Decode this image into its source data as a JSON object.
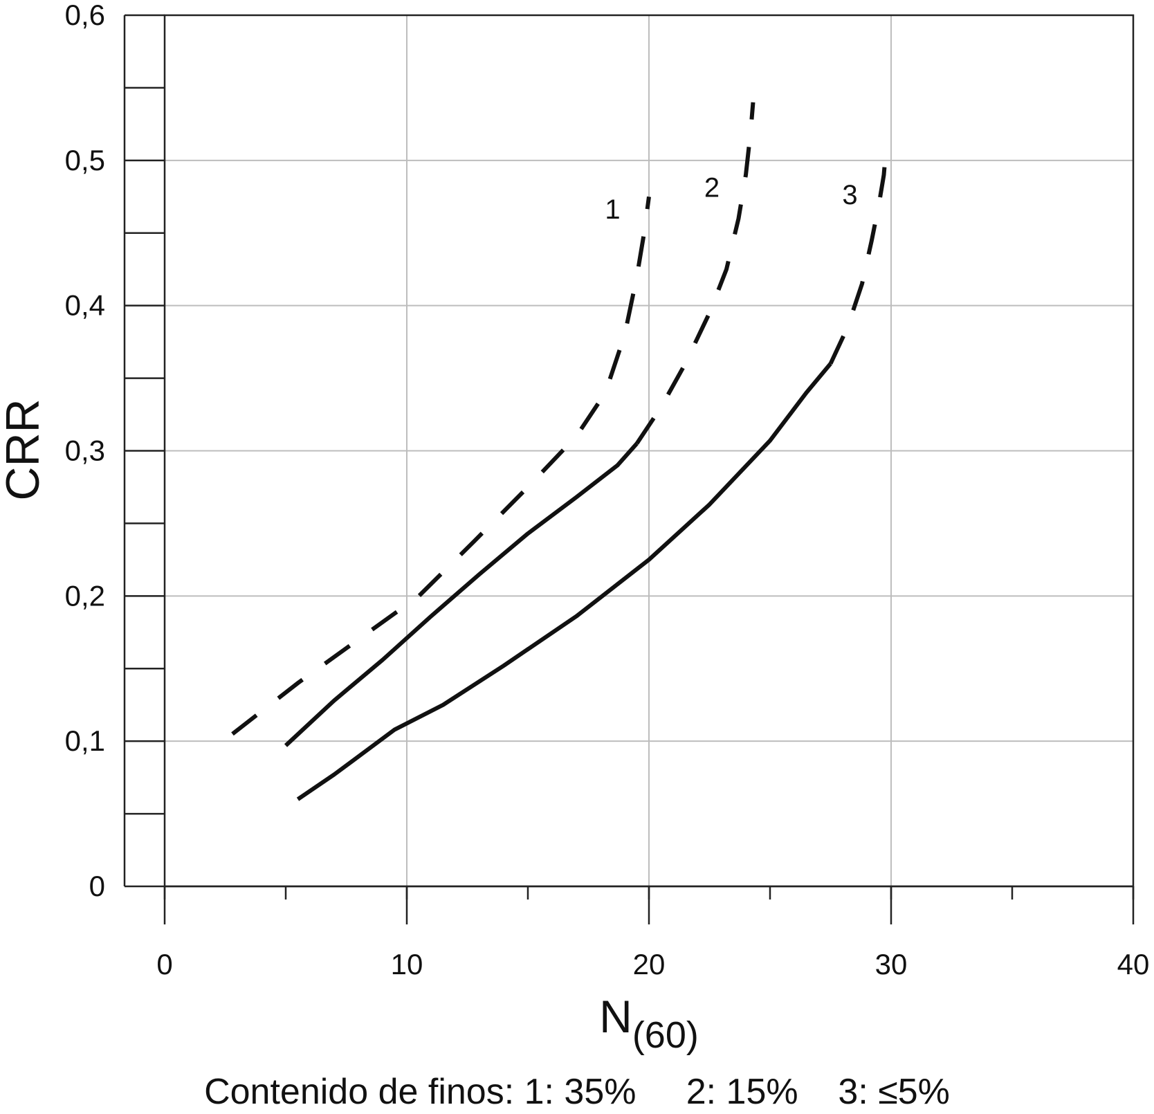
{
  "chart_data": {
    "type": "line",
    "xlabel": "N",
    "xlabel_sub": "(60)",
    "ylabel": "CRR",
    "xlim": [
      0,
      40
    ],
    "ylim": [
      0,
      0.6
    ],
    "x_ticks": [
      0,
      10,
      20,
      30,
      40
    ],
    "x_tick_labels": [
      "0",
      "10",
      "20",
      "30",
      "40"
    ],
    "y_ticks": [
      0,
      0.1,
      0.2,
      0.3,
      0.4,
      0.5,
      0.6
    ],
    "y_tick_labels": [
      "0",
      "0,1",
      "0,2",
      "0,3",
      "0,4",
      "0,5",
      "0,6"
    ],
    "grid": true,
    "series": [
      {
        "name": "1",
        "style": "dashed",
        "x": [
          2.8,
          5.5,
          8.0,
          10.5,
          12.8,
          15.0,
          17.0,
          18.2,
          19.0,
          19.5,
          19.8,
          20.0
        ],
        "y": [
          0.105,
          0.14,
          0.17,
          0.2,
          0.238,
          0.275,
          0.31,
          0.34,
          0.38,
          0.42,
          0.45,
          0.475
        ]
      },
      {
        "name": "2",
        "style": "solid+dashed",
        "x": [
          5.0,
          7.0,
          9.0,
          11.0,
          13.0,
          15.0,
          17.0,
          18.7,
          19.5
        ],
        "y": [
          0.097,
          0.128,
          0.156,
          0.186,
          0.215,
          0.243,
          0.268,
          0.29,
          0.305
        ],
        "dash_x": [
          19.5,
          20.5,
          21.5,
          22.5,
          23.2,
          23.7,
          24.0,
          24.2,
          24.3
        ],
        "dash_y": [
          0.305,
          0.33,
          0.36,
          0.395,
          0.425,
          0.46,
          0.49,
          0.52,
          0.54
        ]
      },
      {
        "name": "3",
        "style": "solid+dashed",
        "x": [
          5.5,
          7.0,
          9.5,
          11.5,
          14.0,
          17.0,
          20.0,
          22.5,
          25.0,
          26.5,
          27.5
        ],
        "y": [
          0.06,
          0.077,
          0.108,
          0.125,
          0.152,
          0.186,
          0.225,
          0.263,
          0.307,
          0.34,
          0.36
        ],
        "dash_x": [
          27.5,
          28.2,
          28.8,
          29.2,
          29.5,
          29.7,
          29.8
        ],
        "dash_y": [
          0.36,
          0.385,
          0.415,
          0.445,
          0.47,
          0.49,
          0.51
        ]
      }
    ],
    "annotations": [
      {
        "text": "1",
        "x": 18.5,
        "y": 0.46
      },
      {
        "text": "2",
        "x": 22.6,
        "y": 0.475
      },
      {
        "text": "3",
        "x": 28.3,
        "y": 0.47
      }
    ],
    "caption": "Contenido de finos: 1: 35%     2: 15%    3: ≤5%"
  }
}
